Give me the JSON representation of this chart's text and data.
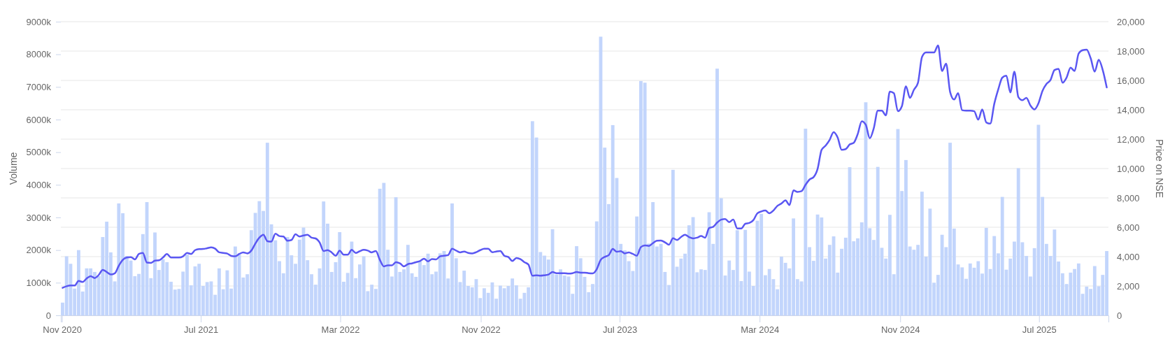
{
  "chart_data": {
    "type": "bar",
    "ylabel": "Volume",
    "y2label": "Price on NSE",
    "grid": "y2",
    "xlim": [
      "2020-10-30",
      "2025-10-30"
    ],
    "xticks": [
      {
        "value": "2020-11-01",
        "label": "Nov 2020"
      },
      {
        "value": "2021-07-01",
        "label": "Jul 2021"
      },
      {
        "value": "2022-03-01",
        "label": "Mar 2022"
      },
      {
        "value": "2022-11-01",
        "label": "Nov 2022"
      },
      {
        "value": "2023-07-01",
        "label": "Jul 2023"
      },
      {
        "value": "2024-03-01",
        "label": "Mar 2024"
      },
      {
        "value": "2024-11-01",
        "label": "Nov 2024"
      },
      {
        "value": "2025-07-01",
        "label": "Jul 2025"
      }
    ],
    "ylim": [
      0,
      9000
    ],
    "yticks": [
      0,
      {
        "value": 1000,
        "label": "1000k"
      },
      {
        "value": 2000,
        "label": "2000k"
      },
      {
        "value": 3000,
        "label": "3000k"
      },
      {
        "value": 4000,
        "label": "4000k"
      },
      {
        "value": 5000,
        "label": "5000k"
      },
      {
        "value": 6000,
        "label": "6000k"
      },
      {
        "value": 7000,
        "label": "7000k"
      },
      {
        "value": 8000,
        "label": "8000k"
      },
      {
        "value": 9000,
        "label": "9000k"
      }
    ],
    "y2lim": [
      0,
      20000
    ],
    "y2ticks": [
      0,
      {
        "value": 2000,
        "label": "2,000"
      },
      {
        "value": 4000,
        "label": "4,000"
      },
      {
        "value": 6000,
        "label": "6,000"
      },
      {
        "value": 8000,
        "label": "8,000"
      },
      {
        "value": 10000,
        "label": "10,000"
      },
      {
        "value": 12000,
        "label": "12,000"
      },
      {
        "value": 14000,
        "label": "14,000"
      },
      {
        "value": 16000,
        "label": "16,000"
      },
      {
        "value": 18000,
        "label": "18,000"
      },
      {
        "value": 20000,
        "label": "20,000"
      }
    ],
    "x": [
      "2020-11-02",
      "2020-11-09",
      "2020-11-16",
      "2020-11-23",
      "2020-11-30",
      "2020-12-07",
      "2020-12-14",
      "2020-12-21",
      "2020-12-28",
      "2021-01-04",
      "2021-01-11",
      "2021-01-18",
      "2021-01-25",
      "2021-02-01",
      "2021-02-08",
      "2021-02-15",
      "2021-02-22",
      "2021-03-01",
      "2021-03-08",
      "2021-03-15",
      "2021-03-22",
      "2021-03-29",
      "2021-04-05",
      "2021-04-12",
      "2021-04-19",
      "2021-04-26",
      "2021-05-03",
      "2021-05-10",
      "2021-05-17",
      "2021-05-24",
      "2021-05-31",
      "2021-06-07",
      "2021-06-14",
      "2021-06-21",
      "2021-06-28",
      "2021-07-05",
      "2021-07-12",
      "2021-07-19",
      "2021-07-26",
      "2021-08-02",
      "2021-08-09",
      "2021-08-16",
      "2021-08-23",
      "2021-08-30",
      "2021-09-06",
      "2021-09-13",
      "2021-09-20",
      "2021-09-27",
      "2021-10-04",
      "2021-10-11",
      "2021-10-18",
      "2021-10-25",
      "2021-11-01",
      "2021-11-08",
      "2021-11-15",
      "2021-11-22",
      "2021-11-29",
      "2021-12-06",
      "2021-12-13",
      "2021-12-20",
      "2021-12-27",
      "2022-01-03",
      "2022-01-10",
      "2022-01-17",
      "2022-01-24",
      "2022-01-31",
      "2022-02-07",
      "2022-02-14",
      "2022-02-21",
      "2022-02-28",
      "2022-03-07",
      "2022-03-14",
      "2022-03-21",
      "2022-03-28",
      "2022-04-04",
      "2022-04-11",
      "2022-04-18",
      "2022-04-25",
      "2022-05-02",
      "2022-05-09",
      "2022-05-16",
      "2022-05-23",
      "2022-05-30",
      "2022-06-06",
      "2022-06-13",
      "2022-06-20",
      "2022-06-27",
      "2022-07-04",
      "2022-07-11",
      "2022-07-18",
      "2022-07-25",
      "2022-08-01",
      "2022-08-08",
      "2022-08-15",
      "2022-08-22",
      "2022-08-29",
      "2022-09-05",
      "2022-09-12",
      "2022-09-19",
      "2022-09-26",
      "2022-10-03",
      "2022-10-10",
      "2022-10-17",
      "2022-10-24",
      "2022-10-31",
      "2022-11-07",
      "2022-11-14",
      "2022-11-21",
      "2022-11-28",
      "2022-12-05",
      "2022-12-12",
      "2022-12-19",
      "2022-12-26",
      "2023-01-02",
      "2023-01-09",
      "2023-01-16",
      "2023-01-23",
      "2023-01-30",
      "2023-02-06",
      "2023-02-13",
      "2023-02-20",
      "2023-02-27",
      "2023-03-06",
      "2023-03-13",
      "2023-03-20",
      "2023-03-27",
      "2023-04-03",
      "2023-04-10",
      "2023-04-17",
      "2023-04-24",
      "2023-05-01",
      "2023-05-08",
      "2023-05-15",
      "2023-05-22",
      "2023-05-29",
      "2023-06-05",
      "2023-06-12",
      "2023-06-19",
      "2023-06-26",
      "2023-07-03",
      "2023-07-10",
      "2023-07-17",
      "2023-07-24",
      "2023-07-31",
      "2023-08-07",
      "2023-08-14",
      "2023-08-21",
      "2023-08-28",
      "2023-09-04",
      "2023-09-11",
      "2023-09-18",
      "2023-09-25",
      "2023-10-02",
      "2023-10-09",
      "2023-10-16",
      "2023-10-23",
      "2023-10-30",
      "2023-11-06",
      "2023-11-13",
      "2023-11-20",
      "2023-11-27",
      "2023-12-04",
      "2023-12-11",
      "2023-12-18",
      "2023-12-25",
      "2024-01-01",
      "2024-01-08",
      "2024-01-15",
      "2024-01-22",
      "2024-01-29",
      "2024-02-05",
      "2024-02-12",
      "2024-02-19",
      "2024-02-26",
      "2024-03-04",
      "2024-03-11",
      "2024-03-18",
      "2024-03-25",
      "2024-04-01",
      "2024-04-08",
      "2024-04-15",
      "2024-04-22",
      "2024-04-29",
      "2024-05-06",
      "2024-05-13",
      "2024-05-20",
      "2024-05-27",
      "2024-06-03",
      "2024-06-10",
      "2024-06-17",
      "2024-06-24",
      "2024-07-01",
      "2024-07-08",
      "2024-07-15",
      "2024-07-22",
      "2024-07-29",
      "2024-08-05",
      "2024-08-12",
      "2024-08-19",
      "2024-08-26",
      "2024-09-02",
      "2024-09-09",
      "2024-09-16",
      "2024-09-23",
      "2024-09-30",
      "2024-10-07",
      "2024-10-14",
      "2024-10-21",
      "2024-10-28",
      "2024-11-04",
      "2024-11-11",
      "2024-11-18",
      "2024-11-25",
      "2024-12-02",
      "2024-12-09",
      "2024-12-16",
      "2024-12-23",
      "2024-12-30",
      "2025-01-06",
      "2025-01-13",
      "2025-01-20",
      "2025-01-27",
      "2025-02-03",
      "2025-02-10",
      "2025-02-17",
      "2025-02-24",
      "2025-03-03",
      "2025-03-10",
      "2025-03-17",
      "2025-03-24",
      "2025-03-31",
      "2025-04-07",
      "2025-04-14",
      "2025-04-21",
      "2025-04-28",
      "2025-05-05",
      "2025-05-12",
      "2025-05-19",
      "2025-05-26",
      "2025-06-02",
      "2025-06-09",
      "2025-06-16",
      "2025-06-23",
      "2025-06-30",
      "2025-07-07",
      "2025-07-14",
      "2025-07-21",
      "2025-07-28",
      "2025-08-04",
      "2025-08-11",
      "2025-08-18",
      "2025-08-25",
      "2025-09-01",
      "2025-09-08",
      "2025-09-15",
      "2025-09-22",
      "2025-09-29",
      "2025-10-06",
      "2025-10-13",
      "2025-10-20",
      "2025-10-27"
    ],
    "series": [
      {
        "color": "#c2d5fc",
        "values": [
          390,
          1810,
          1580,
          820,
          2000,
          730,
          1440,
          1440,
          1330,
          1200,
          2400,
          2870,
          1930,
          1040,
          3430,
          3130,
          1820,
          1680,
          1200,
          1270,
          2490,
          3470,
          1140,
          2540,
          1390,
          1720,
          1630,
          1030,
          790,
          810,
          1340,
          1860,
          920,
          1500,
          1580,
          900,
          1020,
          1040,
          630,
          1440,
          800,
          1380,
          820,
          2110,
          1860,
          1160,
          1260,
          2610,
          3140,
          3500,
          3200,
          5290,
          2790,
          2300,
          1660,
          1290,
          2400,
          1840,
          1580,
          2320,
          2690,
          1690,
          1260,
          940,
          1440,
          3490,
          2810,
          1330,
          1630,
          2550,
          1030,
          1300,
          2260,
          1140,
          1560,
          1810,
          740,
          940,
          810,
          3880,
          4060,
          2010,
          1190,
          3620,
          1330,
          1410,
          2160,
          1290,
          1180,
          1660,
          1540,
          1890,
          1260,
          1340,
          1900,
          1970,
          1130,
          3430,
          1750,
          1020,
          1370,
          900,
          860,
          1110,
          530,
          830,
          690,
          1010,
          510,
          910,
          830,
          900,
          1130,
          920,
          510,
          690,
          860,
          5950,
          5450,
          1940,
          1830,
          1710,
          2640,
          1250,
          1410,
          1220,
          1190,
          660,
          2120,
          1750,
          1180,
          710,
          960,
          2880,
          8540,
          5140,
          3410,
          5830,
          4210,
          2190,
          1990,
          1660,
          1360,
          3030,
          7180,
          7130,
          2200,
          3470,
          2110,
          2190,
          1330,
          930,
          4460,
          1490,
          1740,
          1890,
          2760,
          3010,
          1320,
          1410,
          1390,
          3160,
          2190,
          7560,
          3590,
          1220,
          1680,
          1390,
          2610,
          1050,
          2620,
          1340,
          900,
          2900,
          3110,
          1230,
          1420,
          1110,
          800,
          1800,
          1610,
          1440,
          2970,
          1110,
          1040,
          5720,
          2090,
          1670,
          3090,
          3000,
          1740,
          2160,
          2420,
          1310,
          2040,
          2380,
          4540,
          2270,
          2360,
          2850,
          6530,
          2670,
          2310,
          4550,
          2070,
          1740,
          3080,
          1260,
          5710,
          3810,
          4760,
          2110,
          2010,
          2160,
          3790,
          1800,
          3270,
          1000,
          1240,
          2470,
          2090,
          5290,
          2660,
          1560,
          1470,
          1120,
          1590,
          1460,
          1660,
          1280,
          2680,
          1420,
          2430,
          1900,
          3630,
          1400,
          1740,
          2260,
          4510,
          2240,
          1820,
          1190,
          2060,
          5840,
          3630,
          2190,
          1820,
          2630,
          1650,
          1290,
          960,
          1310,
          1420,
          1590,
          660,
          880,
          810,
          1510,
          890,
          1240,
          1970
        ]
      },
      {
        "type": "line",
        "axis": "y2",
        "color": "#5a57f2",
        "values": [
          1870,
          1980,
          2030,
          2030,
          2350,
          2270,
          2510,
          2670,
          2540,
          2750,
          3100,
          2950,
          2780,
          2860,
          3380,
          3780,
          3940,
          3970,
          3810,
          4180,
          4250,
          3590,
          3570,
          3730,
          3750,
          3940,
          4180,
          3940,
          3940,
          3940,
          4020,
          4250,
          4180,
          4440,
          4510,
          4520,
          4570,
          4630,
          4540,
          4290,
          4250,
          4210,
          4050,
          4020,
          4180,
          4290,
          4220,
          4410,
          4890,
          5290,
          5490,
          5050,
          5020,
          5560,
          5400,
          5370,
          5080,
          5130,
          5520,
          5370,
          5440,
          5490,
          5290,
          5240,
          4970,
          4380,
          4440,
          4290,
          4060,
          4410,
          4130,
          4130,
          4460,
          4250,
          4370,
          4460,
          4410,
          4290,
          4380,
          3780,
          3330,
          3410,
          3400,
          3620,
          3540,
          3330,
          3490,
          3540,
          3620,
          3700,
          3860,
          3680,
          3830,
          3810,
          4020,
          4060,
          4100,
          4540,
          4410,
          4290,
          4350,
          4250,
          4220,
          4300,
          4440,
          4540,
          4540,
          4300,
          4350,
          4380,
          4060,
          3970,
          3700,
          3910,
          3830,
          3620,
          3460,
          2700,
          2730,
          2700,
          2730,
          2780,
          2950,
          2870,
          2870,
          2870,
          2840,
          2870,
          2950,
          2910,
          2910,
          2870,
          2860,
          3140,
          3780,
          3980,
          4100,
          4520,
          4330,
          4370,
          4220,
          4290,
          4180,
          4060,
          4650,
          4760,
          4730,
          4920,
          5080,
          5100,
          4970,
          4810,
          5250,
          5130,
          5330,
          5490,
          5330,
          5240,
          5290,
          5400,
          5290,
          5950,
          6030,
          6320,
          6520,
          6560,
          6350,
          6520,
          5920,
          5920,
          6240,
          6290,
          6480,
          6950,
          7080,
          7140,
          6950,
          7140,
          7460,
          7620,
          7830,
          7510,
          8510,
          8410,
          8460,
          8890,
          9250,
          9410,
          9970,
          11270,
          11560,
          11950,
          12480,
          12110,
          11270,
          11320,
          11640,
          11750,
          12350,
          13220,
          12980,
          12060,
          12750,
          13940,
          13940,
          13620,
          15240,
          15130,
          13900,
          14250,
          15600,
          14810,
          15370,
          15840,
          17590,
          17900,
          17900,
          17900,
          18380,
          16640,
          17140,
          15210,
          14700,
          15130,
          13970,
          13940,
          13940,
          13900,
          13330,
          14020,
          13140,
          13060,
          14410,
          15400,
          16190,
          16320,
          15180,
          16600,
          14860,
          14650,
          14810,
          14290,
          14020,
          14440,
          15290,
          15760,
          16030,
          16710,
          16790,
          15840,
          16190,
          16870,
          16640,
          17830,
          18060,
          18100,
          17510,
          16600,
          17400,
          16710,
          15520
        ]
      }
    ]
  }
}
